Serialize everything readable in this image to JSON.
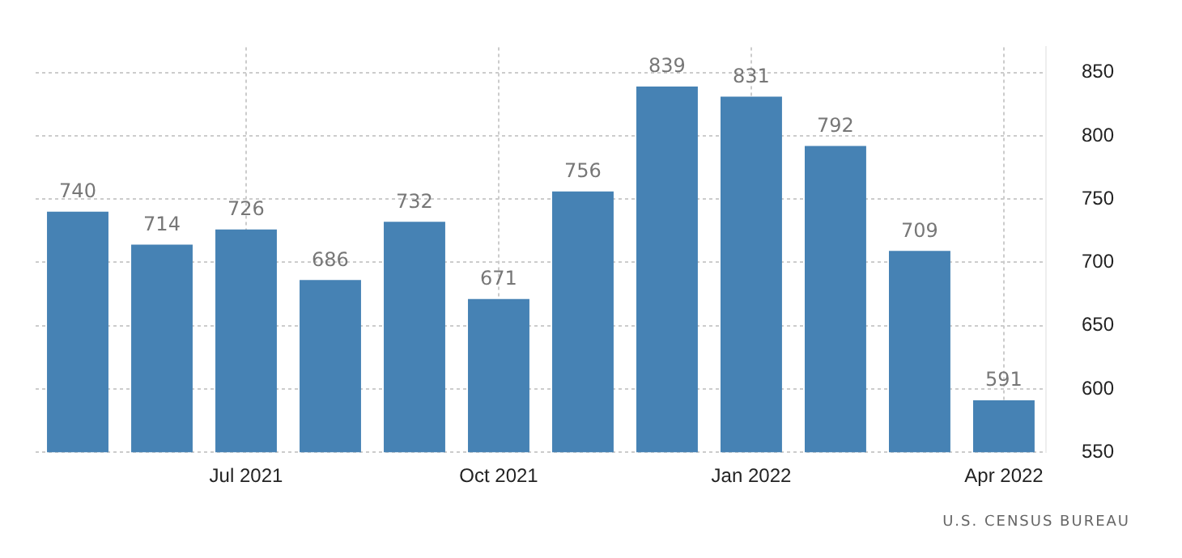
{
  "chart_data": {
    "type": "bar",
    "categories": [
      null,
      null,
      "Jul 2021",
      null,
      null,
      "Oct 2021",
      null,
      null,
      "Jan 2022",
      null,
      null,
      "Apr 2022"
    ],
    "values": [
      740,
      714,
      726,
      686,
      732,
      671,
      756,
      839,
      831,
      792,
      709,
      591
    ],
    "color": "#4682b4",
    "ylim": [
      550,
      870
    ],
    "yticks": [
      550,
      600,
      650,
      700,
      750,
      800,
      850
    ],
    "grid": true,
    "data_labels": true,
    "annotations": [
      "U.S. CENSUS BUREAU"
    ]
  }
}
